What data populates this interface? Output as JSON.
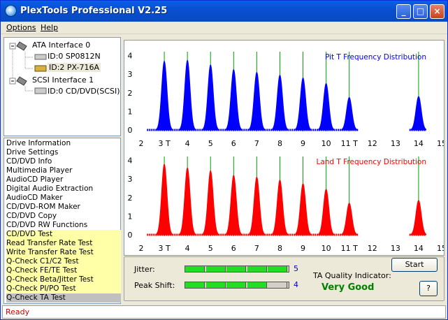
{
  "window": {
    "title": "PlexTools Professional V2.25"
  },
  "menu": {
    "options": "Options",
    "help": "Help"
  },
  "tree": {
    "ata": "ATA Interface 0",
    "ata_dev0": "ID:0  SP0812N",
    "ata_dev1": "ID:2  PX-716A",
    "scsi": "SCSI Interface 1",
    "scsi_dev0": "ID:0  CD/DVD(SCSI)"
  },
  "features": [
    "Drive Information",
    "Drive Settings",
    "CD/DVD Info",
    "Multimedia Player",
    "AudioCD Player",
    "Digital Audio Extraction",
    "AudioCD Maker",
    "CD/DVD-ROM Maker",
    "CD/DVD Copy",
    "CD/DVD RW Functions",
    "CD/DVD Test",
    "Read Transfer Rate Test",
    "Write Transfer Rate Test",
    "Q-Check C1/C2 Test",
    "Q-Check FE/TE Test",
    "Q-Check Beta/Jitter Test",
    "Q-Check PI/PO Test",
    "Q-Check TA Test"
  ],
  "chart_data": [
    {
      "type": "area",
      "title": "Pit T Frequency Distribution",
      "color": "#0000ff",
      "x_ticks": [
        "2",
        "3 T",
        "4",
        "5",
        "6",
        "7",
        "8",
        "9",
        "10",
        "11 T",
        "12",
        "13",
        "14",
        "15"
      ],
      "y_ticks": [
        "0",
        "1",
        "2",
        "3",
        "4"
      ],
      "ylim": [
        0,
        4.2
      ],
      "xlim": [
        2,
        15
      ],
      "peaks": [
        {
          "t": 3,
          "h": 3.7
        },
        {
          "t": 4,
          "h": 3.75
        },
        {
          "t": 5,
          "h": 3.5
        },
        {
          "t": 6,
          "h": 3.25
        },
        {
          "t": 7,
          "h": 3.1
        },
        {
          "t": 8,
          "h": 2.95
        },
        {
          "t": 9,
          "h": 2.8
        },
        {
          "t": 10,
          "h": 2.5
        },
        {
          "t": 11,
          "h": 1.75
        },
        {
          "t": 14,
          "h": 1.8
        }
      ],
      "lines": [
        3,
        4,
        5,
        6,
        7,
        8,
        9,
        10,
        11,
        14
      ]
    },
    {
      "type": "area",
      "title": "Land T Frequency Distribution",
      "color": "#ff0000",
      "x_ticks": [
        "2",
        "3 T",
        "4",
        "5",
        "6",
        "7",
        "8",
        "9",
        "10",
        "11 T",
        "12",
        "13",
        "14",
        "15"
      ],
      "y_ticks": [
        "0",
        "1",
        "2",
        "3",
        "4"
      ],
      "ylim": [
        0,
        4.2
      ],
      "xlim": [
        2,
        15
      ],
      "peaks": [
        {
          "t": 3,
          "h": 3.8
        },
        {
          "t": 4,
          "h": 3.6
        },
        {
          "t": 5,
          "h": 3.45
        },
        {
          "t": 6,
          "h": 3.2
        },
        {
          "t": 7,
          "h": 3.1
        },
        {
          "t": 8,
          "h": 2.95
        },
        {
          "t": 9,
          "h": 2.75
        },
        {
          "t": 10,
          "h": 2.45
        },
        {
          "t": 11,
          "h": 1.7
        },
        {
          "t": 14,
          "h": 1.85
        }
      ],
      "lines": [
        3,
        4,
        5,
        6,
        7,
        8,
        9,
        10,
        11,
        14
      ]
    }
  ],
  "metrics": {
    "jitter_label": "Jitter:",
    "jitter_value": "5",
    "jitter_level": 5,
    "peak_label": "Peak Shift:",
    "peak_value": "4",
    "peak_level": 4,
    "ta_label": "TA Quality Indicator:",
    "ta_value": "Very Good"
  },
  "buttons": {
    "start": "Start",
    "help": "?"
  },
  "status": "Ready",
  "colors": {
    "jitter_green": "#22dd22",
    "quality_green": "#008000"
  }
}
